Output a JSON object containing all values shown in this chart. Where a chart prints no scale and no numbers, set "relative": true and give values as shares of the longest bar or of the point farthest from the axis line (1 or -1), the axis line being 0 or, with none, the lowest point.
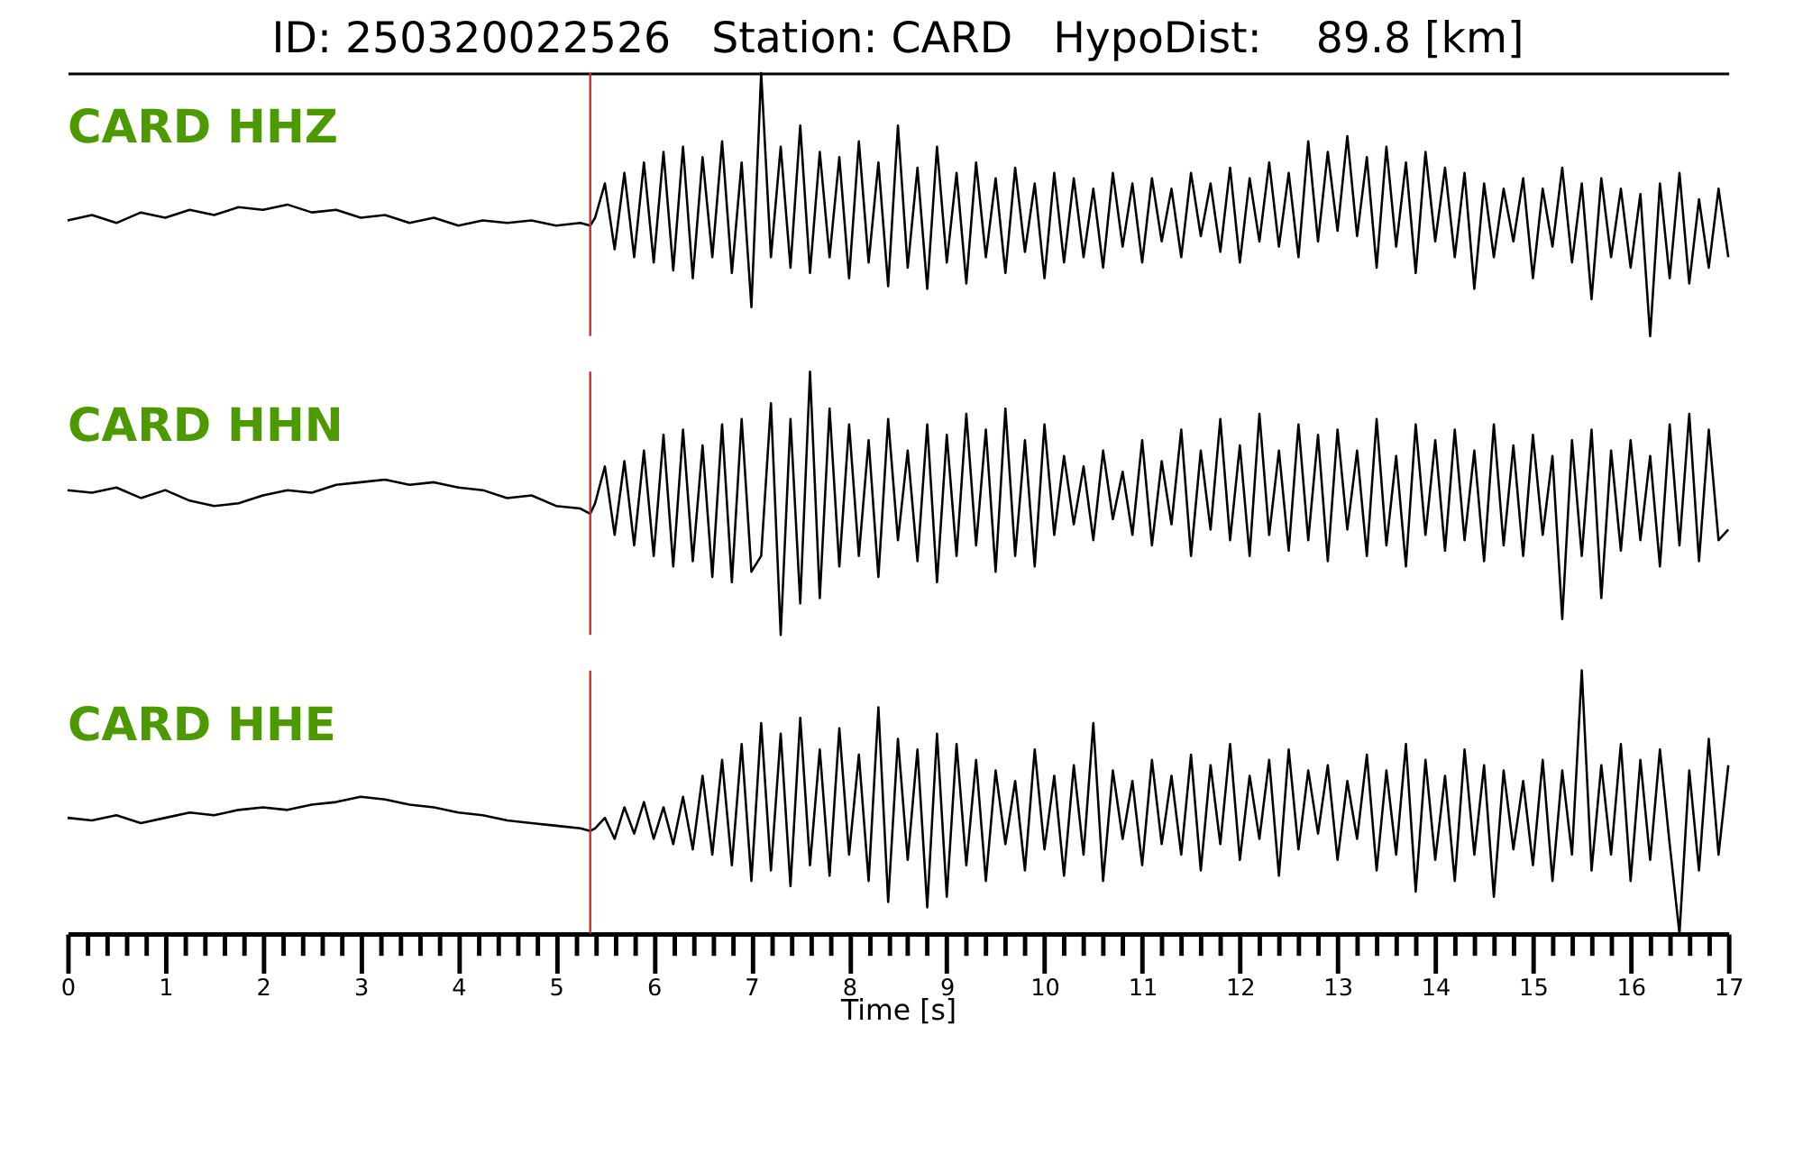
{
  "chart_data": [
    {
      "type": "line",
      "title": "ID: 250320022526   Station: CARD   HypoDist:    89.8 [km]",
      "relative": true,
      "xlim": [
        0,
        17
      ],
      "tick_labels": false,
      "ref_lines": [
        {
          "axis": "x",
          "value": 5.35,
          "color": "#d62728"
        }
      ],
      "series": [
        {
          "name": "CARD HHZ",
          "color": "#000000",
          "x": [
            0,
            0.25,
            0.5,
            0.75,
            1,
            1.25,
            1.5,
            1.75,
            2,
            2.25,
            2.5,
            2.75,
            3,
            3.25,
            3.5,
            3.75,
            4,
            4.25,
            4.5,
            4.75,
            5,
            5.25,
            5.35,
            5.4,
            5.5,
            5.6,
            5.7,
            5.8,
            5.9,
            6.0,
            6.1,
            6.2,
            6.3,
            6.4,
            6.5,
            6.6,
            6.7,
            6.8,
            6.9,
            7.0,
            7.1,
            7.2,
            7.3,
            7.4,
            7.5,
            7.6,
            7.7,
            7.8,
            7.9,
            8.0,
            8.1,
            8.2,
            8.3,
            8.4,
            8.5,
            8.6,
            8.7,
            8.8,
            8.9,
            9.0,
            9.1,
            9.2,
            9.3,
            9.4,
            9.5,
            9.6,
            9.7,
            9.8,
            9.9,
            10.0,
            10.1,
            10.2,
            10.3,
            10.4,
            10.5,
            10.6,
            10.7,
            10.8,
            10.9,
            11.0,
            11.1,
            11.2,
            11.3,
            11.4,
            11.5,
            11.6,
            11.7,
            11.8,
            11.9,
            12.0,
            12.1,
            12.2,
            12.3,
            12.4,
            12.5,
            12.6,
            12.7,
            12.8,
            12.9,
            13.0,
            13.1,
            13.2,
            13.3,
            13.4,
            13.5,
            13.6,
            13.7,
            13.8,
            13.9,
            14.0,
            14.1,
            14.2,
            14.3,
            14.4,
            14.5,
            14.6,
            14.7,
            14.8,
            14.9,
            15.0,
            15.1,
            15.2,
            15.3,
            15.4,
            15.5,
            15.6,
            15.7,
            15.8,
            15.9,
            16.0,
            16.1,
            16.2,
            16.3,
            16.4,
            16.5,
            16.6,
            16.7,
            16.8,
            16.9,
            17.0
          ],
          "values": [
            0.44,
            0.46,
            0.43,
            0.47,
            0.45,
            0.48,
            0.46,
            0.49,
            0.48,
            0.5,
            0.47,
            0.48,
            0.45,
            0.46,
            0.43,
            0.45,
            0.42,
            0.44,
            0.43,
            0.44,
            0.42,
            0.43,
            0.42,
            0.45,
            0.58,
            0.33,
            0.62,
            0.3,
            0.66,
            0.28,
            0.7,
            0.25,
            0.72,
            0.22,
            0.68,
            0.3,
            0.74,
            0.24,
            0.66,
            0.11,
            1.0,
            0.3,
            0.72,
            0.26,
            0.8,
            0.24,
            0.7,
            0.3,
            0.68,
            0.22,
            0.74,
            0.28,
            0.66,
            0.19,
            0.8,
            0.26,
            0.64,
            0.18,
            0.72,
            0.28,
            0.62,
            0.2,
            0.66,
            0.3,
            0.6,
            0.24,
            0.64,
            0.32,
            0.58,
            0.22,
            0.62,
            0.28,
            0.6,
            0.3,
            0.56,
            0.26,
            0.62,
            0.34,
            0.58,
            0.28,
            0.6,
            0.36,
            0.56,
            0.3,
            0.62,
            0.38,
            0.58,
            0.32,
            0.64,
            0.28,
            0.6,
            0.36,
            0.66,
            0.34,
            0.62,
            0.3,
            0.74,
            0.36,
            0.7,
            0.4,
            0.76,
            0.38,
            0.68,
            0.26,
            0.72,
            0.34,
            0.66,
            0.24,
            0.7,
            0.36,
            0.64,
            0.3,
            0.62,
            0.18,
            0.58,
            0.3,
            0.56,
            0.36,
            0.6,
            0.22,
            0.56,
            0.34,
            0.64,
            0.28,
            0.58,
            0.14,
            0.6,
            0.3,
            0.56,
            0.26,
            0.54,
            0.0,
            0.58,
            0.22,
            0.62,
            0.2,
            0.52,
            0.26,
            0.56,
            0.3
          ]
        }
      ]
    },
    {
      "type": "line",
      "relative": true,
      "xlim": [
        0,
        17
      ],
      "tick_labels": false,
      "ref_lines": [
        {
          "axis": "x",
          "value": 5.35,
          "color": "#d62728"
        }
      ],
      "series": [
        {
          "name": "CARD HHN",
          "color": "#000000",
          "x": [
            0,
            0.25,
            0.5,
            0.75,
            1,
            1.25,
            1.5,
            1.75,
            2,
            2.25,
            2.5,
            2.75,
            3,
            3.25,
            3.5,
            3.75,
            4,
            4.25,
            4.5,
            4.75,
            5,
            5.25,
            5.35,
            5.4,
            5.5,
            5.6,
            5.7,
            5.8,
            5.9,
            6.0,
            6.1,
            6.2,
            6.3,
            6.4,
            6.5,
            6.6,
            6.7,
            6.8,
            6.9,
            7.0,
            7.1,
            7.2,
            7.3,
            7.4,
            7.5,
            7.6,
            7.7,
            7.8,
            7.9,
            8.0,
            8.1,
            8.2,
            8.3,
            8.4,
            8.5,
            8.6,
            8.7,
            8.8,
            8.9,
            9.0,
            9.1,
            9.2,
            9.3,
            9.4,
            9.5,
            9.6,
            9.7,
            9.8,
            9.9,
            10.0,
            10.1,
            10.2,
            10.3,
            10.4,
            10.5,
            10.6,
            10.7,
            10.8,
            10.9,
            11.0,
            11.1,
            11.2,
            11.3,
            11.4,
            11.5,
            11.6,
            11.7,
            11.8,
            11.9,
            12.0,
            12.1,
            12.2,
            12.3,
            12.4,
            12.5,
            12.6,
            12.7,
            12.8,
            12.9,
            13.0,
            13.1,
            13.2,
            13.3,
            13.4,
            13.5,
            13.6,
            13.7,
            13.8,
            13.9,
            14.0,
            14.1,
            14.2,
            14.3,
            14.4,
            14.5,
            14.6,
            14.7,
            14.8,
            14.9,
            15.0,
            15.1,
            15.2,
            15.3,
            15.4,
            15.5,
            15.6,
            15.7,
            15.8,
            15.9,
            16.0,
            16.1,
            16.2,
            16.3,
            16.4,
            16.5,
            16.6,
            16.7,
            16.8,
            16.9,
            17.0
          ],
          "values": [
            0.55,
            0.54,
            0.56,
            0.52,
            0.55,
            0.51,
            0.49,
            0.5,
            0.53,
            0.55,
            0.54,
            0.57,
            0.58,
            0.59,
            0.57,
            0.58,
            0.56,
            0.55,
            0.52,
            0.53,
            0.49,
            0.48,
            0.46,
            0.5,
            0.64,
            0.38,
            0.66,
            0.34,
            0.7,
            0.3,
            0.76,
            0.26,
            0.78,
            0.28,
            0.72,
            0.22,
            0.8,
            0.2,
            0.82,
            0.24,
            0.3,
            0.88,
            0.0,
            0.82,
            0.12,
            1.0,
            0.14,
            0.86,
            0.26,
            0.8,
            0.3,
            0.74,
            0.22,
            0.82,
            0.36,
            0.7,
            0.28,
            0.8,
            0.2,
            0.76,
            0.3,
            0.84,
            0.34,
            0.78,
            0.24,
            0.86,
            0.3,
            0.74,
            0.26,
            0.8,
            0.38,
            0.68,
            0.42,
            0.64,
            0.36,
            0.7,
            0.44,
            0.62,
            0.38,
            0.74,
            0.34,
            0.66,
            0.42,
            0.78,
            0.3,
            0.7,
            0.4,
            0.82,
            0.36,
            0.72,
            0.3,
            0.84,
            0.38,
            0.7,
            0.32,
            0.8,
            0.36,
            0.76,
            0.28,
            0.78,
            0.4,
            0.7,
            0.3,
            0.82,
            0.34,
            0.68,
            0.26,
            0.8,
            0.38,
            0.74,
            0.32,
            0.78,
            0.36,
            0.7,
            0.28,
            0.8,
            0.34,
            0.72,
            0.3,
            0.76,
            0.38,
            0.68,
            0.06,
            0.74,
            0.3,
            0.78,
            0.14,
            0.7,
            0.32,
            0.74,
            0.36,
            0.68,
            0.26,
            0.8,
            0.34,
            0.84,
            0.28,
            0.78,
            0.36,
            0.4
          ]
        }
      ]
    },
    {
      "type": "line",
      "relative": true,
      "xlim": [
        0,
        17
      ],
      "tick_labels": "x",
      "xlabel": "Time [s]",
      "xticks": [
        0,
        {
          "value": 0.2,
          "label": null
        },
        {
          "value": 0.4,
          "label": null
        },
        {
          "value": 0.6,
          "label": null
        },
        {
          "value": 0.8,
          "label": null
        },
        1,
        {
          "value": 1.2,
          "label": null
        },
        {
          "value": 1.4,
          "label": null
        },
        {
          "value": 1.6,
          "label": null
        },
        {
          "value": 1.8,
          "label": null
        },
        2,
        {
          "value": 2.2,
          "label": null
        },
        {
          "value": 2.4,
          "label": null
        },
        {
          "value": 2.6,
          "label": null
        },
        {
          "value": 2.8,
          "label": null
        },
        3,
        {
          "value": 3.2,
          "label": null
        },
        {
          "value": 3.4,
          "label": null
        },
        {
          "value": 3.6,
          "label": null
        },
        {
          "value": 3.8,
          "label": null
        },
        4,
        {
          "value": 4.2,
          "label": null
        },
        {
          "value": 4.4,
          "label": null
        },
        {
          "value": 4.6,
          "label": null
        },
        {
          "value": 4.8,
          "label": null
        },
        5,
        {
          "value": 5.2,
          "label": null
        },
        {
          "value": 5.4,
          "label": null
        },
        {
          "value": 5.6,
          "label": null
        },
        {
          "value": 5.8,
          "label": null
        },
        6,
        {
          "value": 6.2,
          "label": null
        },
        {
          "value": 6.4,
          "label": null
        },
        {
          "value": 6.6,
          "label": null
        },
        {
          "value": 6.8,
          "label": null
        },
        7,
        {
          "value": 7.2,
          "label": null
        },
        {
          "value": 7.4,
          "label": null
        },
        {
          "value": 7.6,
          "label": null
        },
        {
          "value": 7.8,
          "label": null
        },
        8,
        {
          "value": 8.2,
          "label": null
        },
        {
          "value": 8.4,
          "label": null
        },
        {
          "value": 8.6,
          "label": null
        },
        {
          "value": 8.8,
          "label": null
        },
        9,
        {
          "value": 9.2,
          "label": null
        },
        {
          "value": 9.4,
          "label": null
        },
        {
          "value": 9.6,
          "label": null
        },
        {
          "value": 9.8,
          "label": null
        },
        10,
        {
          "value": 10.2,
          "label": null
        },
        {
          "value": 10.4,
          "label": null
        },
        {
          "value": 10.6,
          "label": null
        },
        {
          "value": 10.8,
          "label": null
        },
        11,
        {
          "value": 11.2,
          "label": null
        },
        {
          "value": 11.4,
          "label": null
        },
        {
          "value": 11.6,
          "label": null
        },
        {
          "value": 11.8,
          "label": null
        },
        12,
        {
          "value": 12.2,
          "label": null
        },
        {
          "value": 12.4,
          "label": null
        },
        {
          "value": 12.6,
          "label": null
        },
        {
          "value": 12.8,
          "label": null
        },
        13,
        {
          "value": 13.2,
          "label": null
        },
        {
          "value": 13.4,
          "label": null
        },
        {
          "value": 13.6,
          "label": null
        },
        {
          "value": 13.8,
          "label": null
        },
        14,
        {
          "value": 14.2,
          "label": null
        },
        {
          "value": 14.4,
          "label": null
        },
        {
          "value": 14.6,
          "label": null
        },
        {
          "value": 14.8,
          "label": null
        },
        15,
        {
          "value": 15.2,
          "label": null
        },
        {
          "value": 15.4,
          "label": null
        },
        {
          "value": 15.6,
          "label": null
        },
        {
          "value": 15.8,
          "label": null
        },
        16,
        {
          "value": 16.2,
          "label": null
        },
        {
          "value": 16.4,
          "label": null
        },
        {
          "value": 16.6,
          "label": null
        },
        {
          "value": 16.8,
          "label": null
        },
        17
      ],
      "ref_lines": [
        {
          "axis": "x",
          "value": 5.35,
          "color": "#d62728"
        }
      ],
      "series": [
        {
          "name": "CARD HHE",
          "color": "#000000",
          "x": [
            0,
            0.25,
            0.5,
            0.75,
            1,
            1.25,
            1.5,
            1.75,
            2,
            2.25,
            2.5,
            2.75,
            3,
            3.25,
            3.5,
            3.75,
            4,
            4.25,
            4.5,
            4.75,
            5,
            5.25,
            5.35,
            5.4,
            5.5,
            5.6,
            5.7,
            5.8,
            5.9,
            6.0,
            6.1,
            6.2,
            6.3,
            6.4,
            6.5,
            6.6,
            6.7,
            6.8,
            6.9,
            7.0,
            7.1,
            7.2,
            7.3,
            7.4,
            7.5,
            7.6,
            7.7,
            7.8,
            7.9,
            8.0,
            8.1,
            8.2,
            8.3,
            8.4,
            8.5,
            8.6,
            8.7,
            8.8,
            8.9,
            9.0,
            9.1,
            9.2,
            9.3,
            9.4,
            9.5,
            9.6,
            9.7,
            9.8,
            9.9,
            10.0,
            10.1,
            10.2,
            10.3,
            10.4,
            10.5,
            10.6,
            10.7,
            10.8,
            10.9,
            11.0,
            11.1,
            11.2,
            11.3,
            11.4,
            11.5,
            11.6,
            11.7,
            11.8,
            11.9,
            12.0,
            12.1,
            12.2,
            12.3,
            12.4,
            12.5,
            12.6,
            12.7,
            12.8,
            12.9,
            13.0,
            13.1,
            13.2,
            13.3,
            13.4,
            13.5,
            13.6,
            13.7,
            13.8,
            13.9,
            14.0,
            14.1,
            14.2,
            14.3,
            14.4,
            14.5,
            14.6,
            14.7,
            14.8,
            14.9,
            15.0,
            15.1,
            15.2,
            15.3,
            15.4,
            15.5,
            15.6,
            15.7,
            15.8,
            15.9,
            16.0,
            16.1,
            16.2,
            16.3,
            16.4,
            16.5,
            16.6,
            16.7,
            16.8,
            16.9,
            17.0
          ],
          "values": [
            0.44,
            0.43,
            0.45,
            0.42,
            0.44,
            0.46,
            0.45,
            0.47,
            0.48,
            0.47,
            0.49,
            0.5,
            0.52,
            0.51,
            0.49,
            0.48,
            0.46,
            0.45,
            0.43,
            0.42,
            0.41,
            0.4,
            0.39,
            0.4,
            0.44,
            0.36,
            0.48,
            0.38,
            0.5,
            0.36,
            0.48,
            0.34,
            0.52,
            0.32,
            0.6,
            0.3,
            0.66,
            0.26,
            0.72,
            0.2,
            0.8,
            0.24,
            0.76,
            0.18,
            0.82,
            0.26,
            0.7,
            0.22,
            0.78,
            0.3,
            0.68,
            0.2,
            0.86,
            0.12,
            0.74,
            0.28,
            0.7,
            0.1,
            0.76,
            0.14,
            0.72,
            0.26,
            0.66,
            0.2,
            0.62,
            0.34,
            0.58,
            0.24,
            0.7,
            0.32,
            0.6,
            0.22,
            0.64,
            0.3,
            0.8,
            0.2,
            0.62,
            0.36,
            0.58,
            0.26,
            0.66,
            0.34,
            0.6,
            0.3,
            0.68,
            0.24,
            0.64,
            0.34,
            0.72,
            0.28,
            0.6,
            0.36,
            0.66,
            0.22,
            0.7,
            0.32,
            0.62,
            0.38,
            0.64,
            0.28,
            0.58,
            0.36,
            0.68,
            0.24,
            0.62,
            0.3,
            0.72,
            0.16,
            0.66,
            0.28,
            0.6,
            0.2,
            0.7,
            0.3,
            0.64,
            0.14,
            0.62,
            0.32,
            0.58,
            0.26,
            0.66,
            0.2,
            0.62,
            0.3,
            1.0,
            0.24,
            0.64,
            0.3,
            0.72,
            0.2,
            0.66,
            0.28,
            0.7,
            0.34,
            0.0,
            0.62,
            0.24,
            0.74,
            0.3,
            0.64
          ]
        }
      ]
    }
  ]
}
